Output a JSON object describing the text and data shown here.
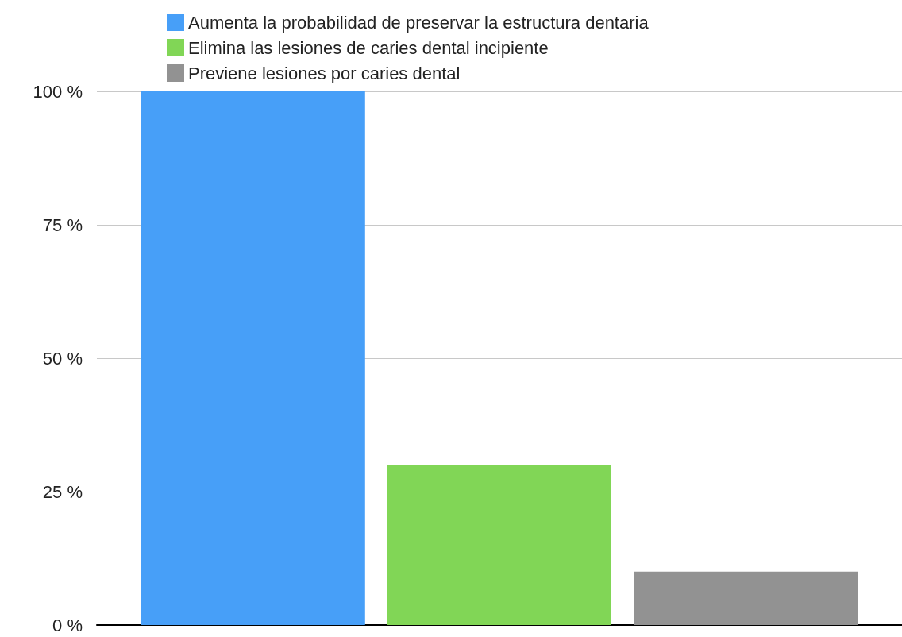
{
  "chart_data": {
    "type": "bar",
    "categories": [
      null
    ],
    "series": [
      {
        "name": "Aumenta la probabilidad de preservar la estructura dentaria",
        "color": "#479ff8",
        "values": [
          100
        ]
      },
      {
        "name": "Elimina las lesiones de caries dental incipiente",
        "color": "#81d656",
        "values": [
          30
        ]
      },
      {
        "name": "Previene lesiones por caries dental",
        "color": "#929292",
        "values": [
          10
        ]
      }
    ],
    "ylim": [
      0,
      100
    ],
    "yticks": [
      {
        "value": 0,
        "label": "0 %"
      },
      {
        "value": 25,
        "label": "25 %"
      },
      {
        "value": 50,
        "label": "50 %"
      },
      {
        "value": 75,
        "label": "75 %"
      },
      {
        "value": 100,
        "label": "100 %"
      }
    ],
    "grid": "y",
    "legend": "top"
  }
}
